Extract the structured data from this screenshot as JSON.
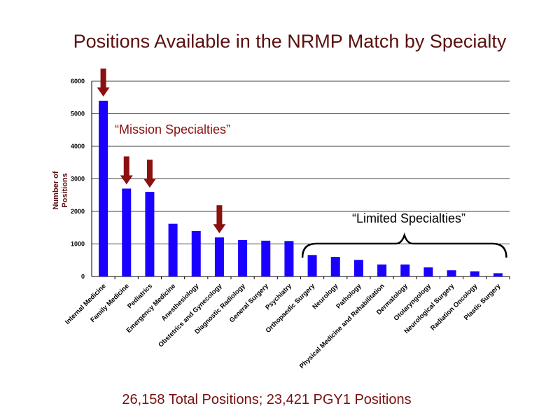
{
  "slide": {
    "title": "Positions Available in the NRMP Match by Specialty",
    "footer": "26,158 Total Positions; 23,421 PGY1 Positions"
  },
  "chart_data": {
    "type": "bar",
    "title": "Positions Available in the NRMP Match by Specialty",
    "xlabel": "",
    "ylabel": "Number of Positions",
    "ylim": [
      0,
      6000
    ],
    "yticks": [
      0,
      1000,
      2000,
      3000,
      4000,
      5000,
      6000
    ],
    "grid": true,
    "legend": "none",
    "bar_color": "#1a00ff",
    "categories": [
      "Internal Medicine",
      "Family Medicine",
      "Pediatrics",
      "Emergency Medicine",
      "Anesthesiology",
      "Obstetrics and Gynecology",
      "Diagnostic Radiology",
      "General Surgery",
      "Psychiatry",
      "Orthopaedic Surgery",
      "Neurology",
      "Pathology",
      "Physical Medicine and Rehabilitation",
      "Dermatology",
      "Otolaryngology",
      "Neurological Surgery",
      "Radiation Oncology",
      "Plastic Surgery"
    ],
    "values": [
      5400,
      2700,
      2600,
      1620,
      1400,
      1200,
      1120,
      1100,
      1090,
      660,
      600,
      510,
      370,
      370,
      280,
      190,
      160,
      100
    ],
    "annotations": {
      "mission_label": "“Mission Specialties”",
      "limited_label": "“Limited Specialties”",
      "arrow_color": "#8b1010",
      "mission_arrow_indices": [
        0,
        1,
        2,
        5
      ],
      "limited_brace_range": [
        9,
        17
      ]
    }
  }
}
